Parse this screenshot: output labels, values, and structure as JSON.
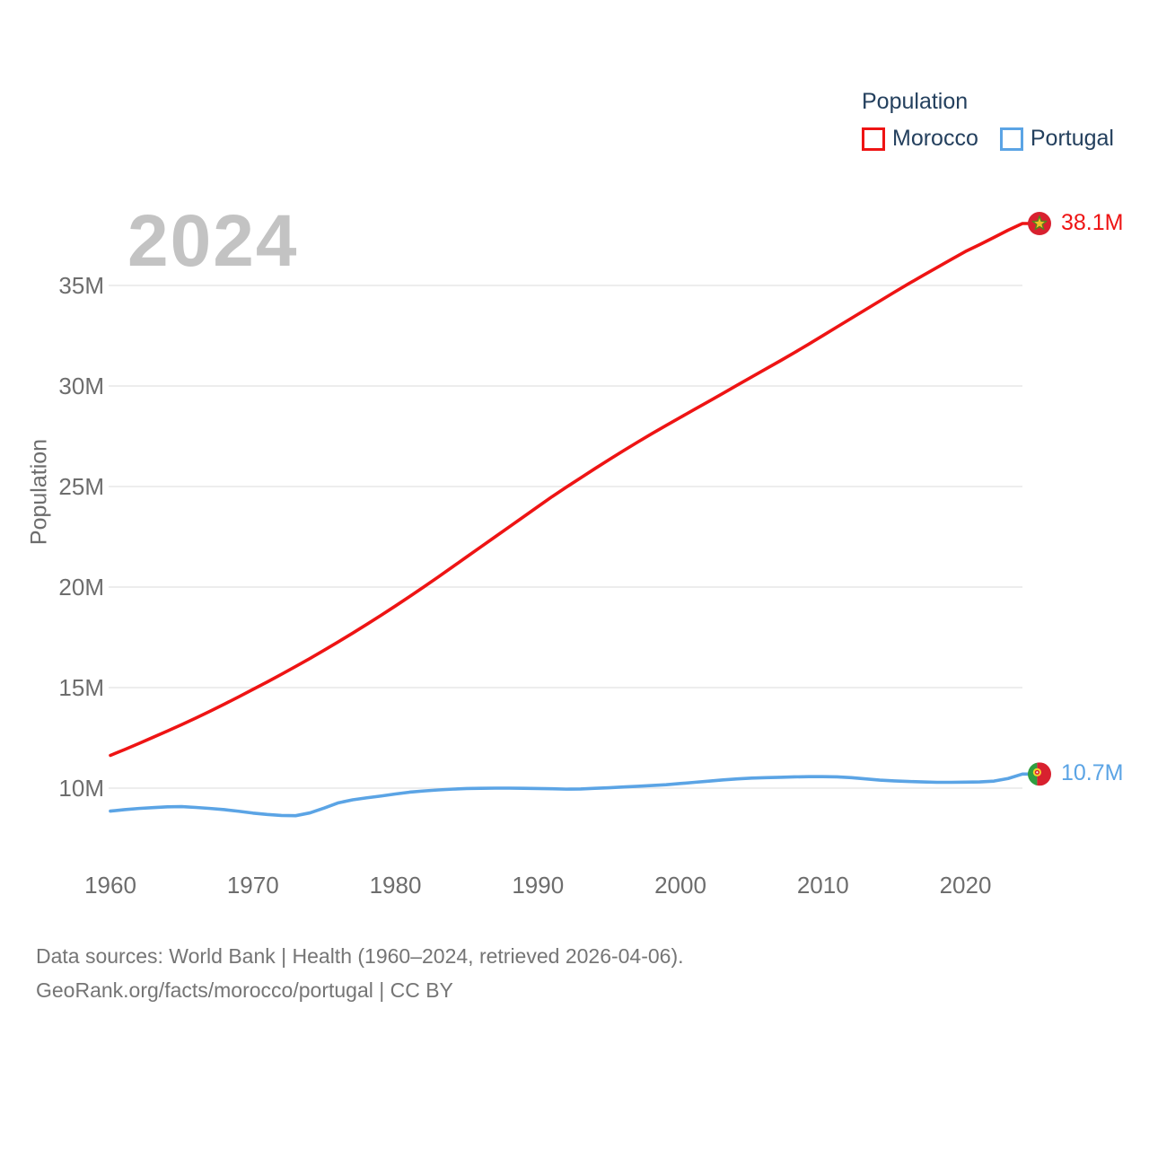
{
  "watermark": "2024",
  "legend": {
    "title": "Population",
    "series": [
      {
        "label": "Morocco",
        "color": "#ee1414"
      },
      {
        "label": "Portugal",
        "color": "#5ba4e5"
      }
    ]
  },
  "y_axis": {
    "title": "Population",
    "tick_labels": [
      "10M",
      "15M",
      "20M",
      "25M",
      "30M",
      "35M"
    ],
    "tick_values": [
      10,
      15,
      20,
      25,
      30,
      35
    ]
  },
  "x_axis": {
    "tick_labels": [
      "1960",
      "1970",
      "1980",
      "1990",
      "2000",
      "2010",
      "2020"
    ],
    "tick_values": [
      1960,
      1970,
      1980,
      1990,
      2000,
      2010,
      2020
    ]
  },
  "footer": {
    "line1": "Data sources: World Bank | Health (1960–2024, retrieved 2026-04-06).",
    "line2": "GeoRank.org/facts/morocco/portugal | CC BY"
  },
  "chart_data": {
    "type": "line",
    "title": "Population",
    "xlabel": "",
    "ylabel": "Population",
    "xlim": [
      1960,
      2024
    ],
    "ylim": [
      8,
      39
    ],
    "grid": "horizontal",
    "legend_position": "top-right",
    "x": [
      1960,
      1961,
      1962,
      1963,
      1964,
      1965,
      1966,
      1967,
      1968,
      1969,
      1970,
      1971,
      1972,
      1973,
      1974,
      1975,
      1976,
      1977,
      1978,
      1979,
      1980,
      1981,
      1982,
      1983,
      1984,
      1985,
      1986,
      1987,
      1988,
      1989,
      1990,
      1991,
      1992,
      1993,
      1994,
      1995,
      1996,
      1997,
      1998,
      1999,
      2000,
      2001,
      2002,
      2003,
      2004,
      2005,
      2006,
      2007,
      2008,
      2009,
      2010,
      2011,
      2012,
      2013,
      2014,
      2015,
      2016,
      2017,
      2018,
      2019,
      2020,
      2021,
      2022,
      2023,
      2024
    ],
    "series": [
      {
        "name": "Morocco",
        "color": "#ee1414",
        "end_label": "38.1M",
        "flag": "morocco-flag",
        "values": [
          11.63,
          11.92,
          12.22,
          12.53,
          12.84,
          13.16,
          13.49,
          13.83,
          14.18,
          14.54,
          14.91,
          15.28,
          15.66,
          16.05,
          16.45,
          16.86,
          17.28,
          17.71,
          18.15,
          18.6,
          19.06,
          19.53,
          20.01,
          20.5,
          21.0,
          21.5,
          22.0,
          22.5,
          23.0,
          23.5,
          24.0,
          24.5,
          24.97,
          25.43,
          25.89,
          26.34,
          26.78,
          27.21,
          27.63,
          28.04,
          28.44,
          28.84,
          29.24,
          29.64,
          30.05,
          30.45,
          30.85,
          31.25,
          31.66,
          32.08,
          32.51,
          32.94,
          33.37,
          33.8,
          34.23,
          34.66,
          35.08,
          35.49,
          35.89,
          36.29,
          36.69,
          37.03,
          37.39,
          37.75,
          38.08
        ]
      },
      {
        "name": "Portugal",
        "color": "#5ba4e5",
        "end_label": "10.7M",
        "flag": "portugal-flag",
        "values": [
          8.86,
          8.93,
          8.99,
          9.03,
          9.07,
          9.08,
          9.04,
          8.99,
          8.93,
          8.85,
          8.76,
          8.69,
          8.64,
          8.63,
          8.77,
          9.01,
          9.27,
          9.42,
          9.52,
          9.61,
          9.71,
          9.8,
          9.86,
          9.91,
          9.95,
          9.98,
          9.99,
          10.0,
          10.0,
          9.99,
          9.98,
          9.97,
          9.95,
          9.96,
          9.99,
          10.02,
          10.06,
          10.09,
          10.13,
          10.17,
          10.23,
          10.29,
          10.35,
          10.41,
          10.46,
          10.5,
          10.52,
          10.54,
          10.56,
          10.57,
          10.57,
          10.56,
          10.52,
          10.46,
          10.4,
          10.36,
          10.33,
          10.31,
          10.29,
          10.29,
          10.3,
          10.31,
          10.35,
          10.48,
          10.7
        ]
      }
    ]
  }
}
